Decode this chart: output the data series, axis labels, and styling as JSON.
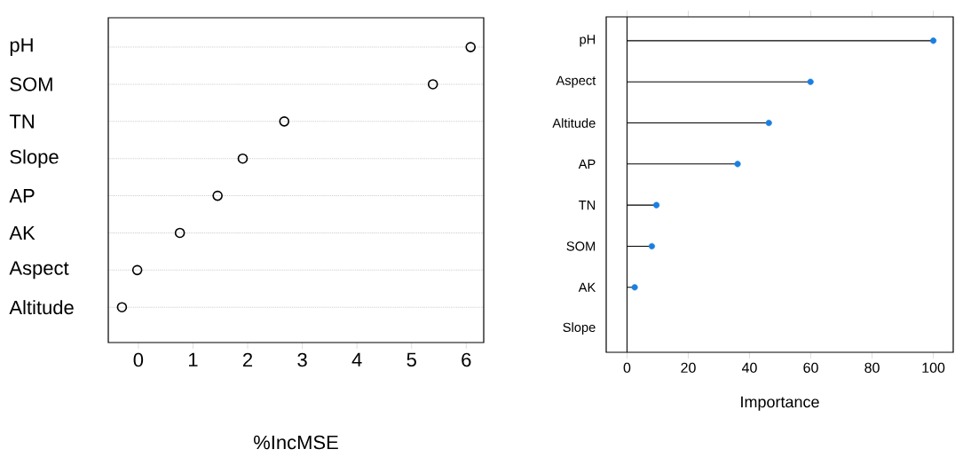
{
  "chart_data": [
    {
      "type": "scatter",
      "orientation": "horizontal",
      "categories": [
        "pH",
        "SOM",
        "TN",
        "Slope",
        "AP",
        "AK",
        "Aspect",
        "Altitude"
      ],
      "values": [
        6.08,
        5.39,
        2.67,
        1.91,
        1.45,
        0.76,
        -0.02,
        -0.3
      ],
      "color": "#000000",
      "marker": "circle",
      "xlim": [
        -0.55,
        6.32
      ],
      "xticks": [
        0,
        1,
        2,
        3,
        4,
        5,
        6
      ],
      "xlabel": "%IncMSE",
      "grid": "y"
    },
    {
      "type": "lollipop",
      "orientation": "horizontal",
      "categories": [
        "pH",
        "Aspect",
        "Altitude",
        "AP",
        "TN",
        "SOM",
        "AK",
        "Slope"
      ],
      "values": [
        100,
        59.9,
        46.3,
        36.1,
        9.6,
        8.1,
        2.5,
        null
      ],
      "color": "#1a7fe0",
      "marker": "circle",
      "xlim": [
        -6.8,
        106.5
      ],
      "xticks": [
        0,
        20,
        40,
        60,
        80,
        100
      ],
      "xlabel": "Importance",
      "ref_lines": [
        {
          "axis": "x",
          "value": 0
        }
      ]
    }
  ]
}
